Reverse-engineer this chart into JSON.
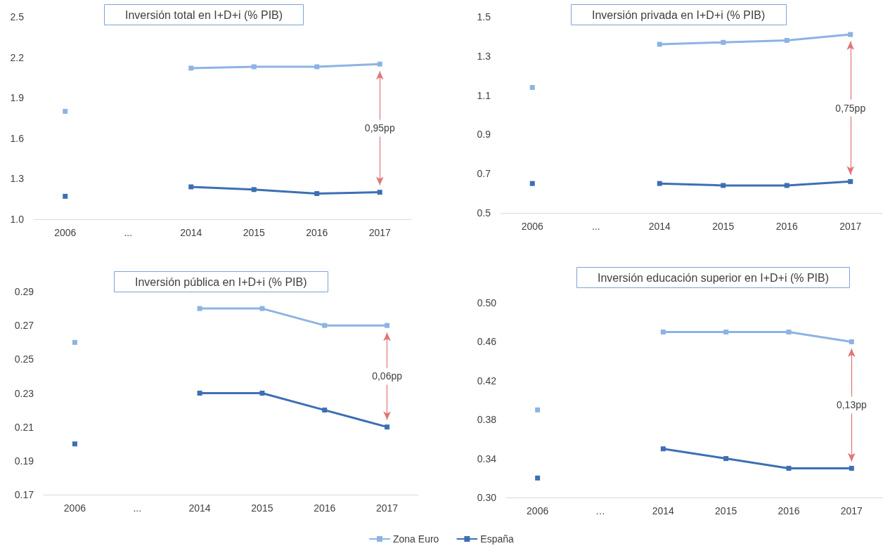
{
  "chart_data": [
    {
      "type": "line",
      "title": "Inversión total en I+D+i (% PIB)",
      "categories": [
        "2006",
        "...",
        "2014",
        "2015",
        "2016",
        "2017"
      ],
      "series": [
        {
          "color": "#8db3e2",
          "values": [
            1.8,
            null,
            2.12,
            2.13,
            2.13,
            2.15
          ]
        },
        {
          "color": "#3d6fb4",
          "values": [
            1.17,
            null,
            1.24,
            1.22,
            1.19,
            1.2
          ]
        }
      ],
      "ylim": [
        1.0,
        2.5
      ],
      "yticks": [
        {
          "value": 1.0,
          "label": "1.0"
        },
        1.3,
        1.6,
        1.9,
        2.2,
        2.5
      ],
      "annotations": [
        "0,95pp"
      ],
      "grid": false,
      "marker": "square",
      "legend": false
    },
    {
      "type": "line",
      "title": "Inversión privada en I+D+i (% PIB)",
      "categories": [
        "2006",
        "...",
        "2014",
        "2015",
        "2016",
        "2017"
      ],
      "series": [
        {
          "color": "#8db3e2",
          "values": [
            1.14,
            null,
            1.36,
            1.37,
            1.38,
            1.41
          ]
        },
        {
          "color": "#3d6fb4",
          "values": [
            0.65,
            null,
            0.65,
            0.64,
            0.64,
            0.66
          ]
        }
      ],
      "ylim": [
        0.5,
        1.5
      ],
      "yticks": [
        0.5,
        0.7,
        0.9,
        1.1,
        1.3,
        1.5
      ],
      "annotations": [
        "0,75pp"
      ],
      "grid": false,
      "marker": "square",
      "legend": false
    },
    {
      "type": "line",
      "title": "Inversión pública en I+D+i (% PIB)",
      "categories": [
        "2006",
        "...",
        "2014",
        "2015",
        "2016",
        "2017"
      ],
      "series": [
        {
          "color": "#8db3e2",
          "values": [
            0.26,
            null,
            0.28,
            0.28,
            0.27,
            0.27
          ]
        },
        {
          "color": "#3d6fb4",
          "values": [
            0.2,
            null,
            0.23,
            0.23,
            0.22,
            0.21
          ]
        }
      ],
      "ylim": [
        0.17,
        0.29
      ],
      "yticks": [
        0.17,
        0.19,
        0.21,
        0.23,
        0.25,
        0.27,
        0.29
      ],
      "annotations": [
        "0,06pp"
      ],
      "grid": false,
      "marker": "square",
      "legend": false
    },
    {
      "type": "line",
      "title": "Inversión educación superior en I+D+i (% PIB)",
      "categories": [
        "2006",
        "…",
        "2014",
        "2015",
        "2016",
        "2017"
      ],
      "series": [
        {
          "name": "Zona Euro",
          "color": "#8db3e2",
          "values": [
            0.39,
            null,
            0.47,
            0.47,
            0.47,
            0.46
          ]
        },
        {
          "name": "España",
          "color": "#3d6fb4",
          "values": [
            0.32,
            null,
            0.35,
            0.34,
            0.33,
            0.33
          ]
        }
      ],
      "ylim": [
        0.3,
        0.5
      ],
      "yticks": [
        {
          "value": 0.3,
          "label": "0.30"
        },
        0.34,
        0.38,
        0.42,
        0.46,
        {
          "value": 0.5,
          "label": "0.50"
        }
      ],
      "annotations": [
        "0,13pp"
      ],
      "grid": false,
      "marker": "square",
      "legend": "bottom"
    }
  ]
}
